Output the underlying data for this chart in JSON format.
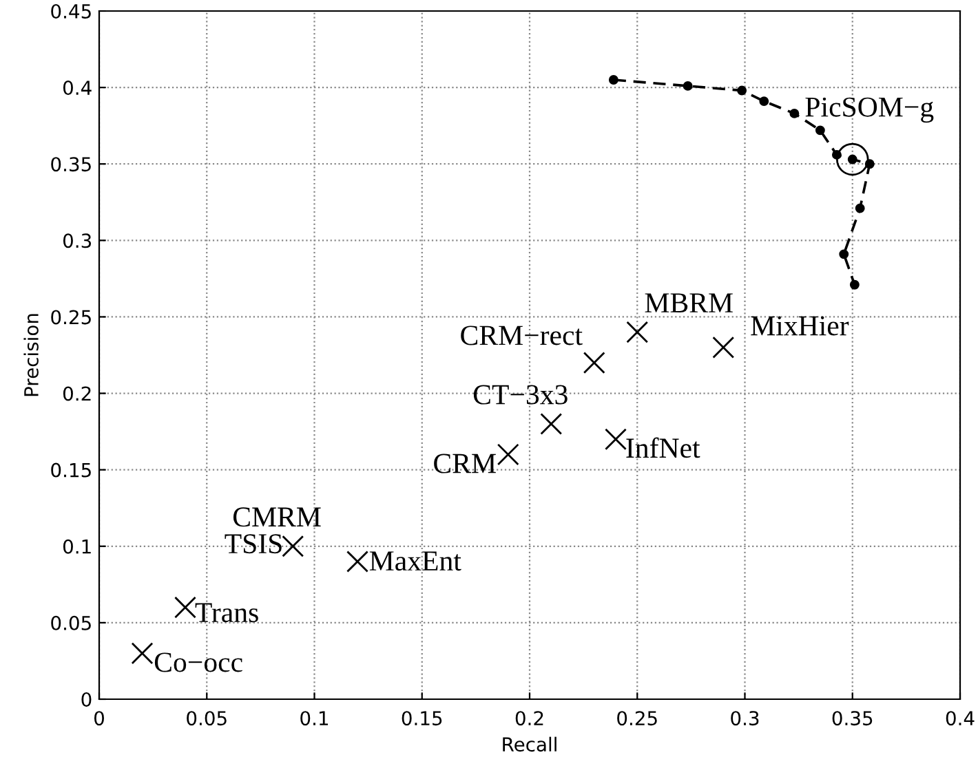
{
  "chart_data": {
    "type": "scatter",
    "xlabel": "Recall",
    "ylabel": "Precision",
    "xlim": [
      0,
      0.4
    ],
    "ylim": [
      0,
      0.45
    ],
    "xticks": [
      0,
      0.05,
      0.1,
      0.15,
      0.2,
      0.25,
      0.3,
      0.35,
      0.4
    ],
    "yticks": [
      0,
      0.05,
      0.1,
      0.15,
      0.2,
      0.25,
      0.3,
      0.35,
      0.4,
      0.45
    ],
    "grid": true,
    "series": [
      {
        "marker": "cross",
        "color": "#000000",
        "x": [
          0.02,
          0.04,
          0.09,
          0.12,
          0.19,
          0.21,
          0.24,
          0.23,
          0.25,
          0.29
        ],
        "values": [
          0.03,
          0.06,
          0.1,
          0.09,
          0.16,
          0.18,
          0.17,
          0.22,
          0.24,
          0.23
        ]
      },
      {
        "type": "line",
        "marker": "circle",
        "line_style": "dashed",
        "color": "#000000",
        "x": [
          0.239,
          0.2735,
          0.2986,
          0.3089,
          0.323,
          0.335,
          0.3427,
          0.35,
          0.358,
          0.3535,
          0.346,
          0.351
        ],
        "values": [
          0.405,
          0.401,
          0.398,
          0.391,
          0.383,
          0.372,
          0.356,
          0.353,
          0.35,
          0.321,
          0.291,
          0.271
        ]
      },
      {
        "marker": "circle",
        "color": "#000000",
        "x": [
          0.35
        ],
        "values": [
          0.353
        ]
      }
    ],
    "annotations": [
      {
        "text": "Co−occ",
        "x": 0.02,
        "y": 0.03
      },
      {
        "text": "Trans",
        "x": 0.04,
        "y": 0.06
      },
      {
        "text": "TSIS",
        "x": 0.09,
        "y": 0.1
      },
      {
        "text": "CMRM",
        "x": 0.09,
        "y": 0.1
      },
      {
        "text": "MaxEnt",
        "x": 0.12,
        "y": 0.09
      },
      {
        "text": "CRM",
        "x": 0.19,
        "y": 0.16
      },
      {
        "text": "CT−3x3",
        "x": 0.21,
        "y": 0.18
      },
      {
        "text": "InfNet",
        "x": 0.24,
        "y": 0.17
      },
      {
        "text": "CRM−rect",
        "x": 0.23,
        "y": 0.22
      },
      {
        "text": "MBRM",
        "x": 0.25,
        "y": 0.24
      },
      {
        "text": "MixHier",
        "x": 0.29,
        "y": 0.23
      },
      {
        "text": "PicSOM−g",
        "x": 0.35,
        "y": 0.353
      }
    ]
  }
}
